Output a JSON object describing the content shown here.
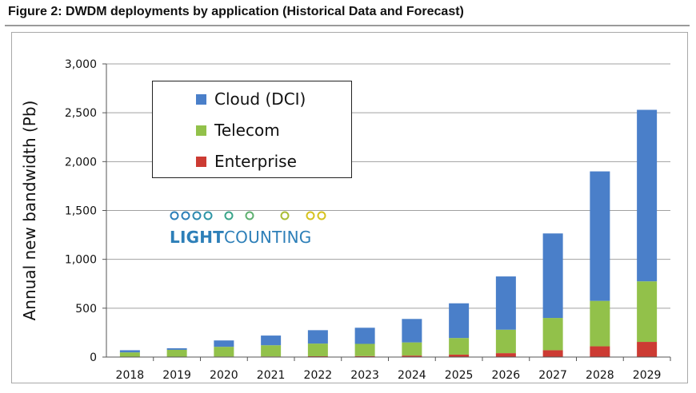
{
  "figure_title": "Figure 2: DWDM deployments by application (Historical Data and Forecast)",
  "logo": {
    "part1": "LIGHT",
    "part2": "COUNTING"
  },
  "colors": {
    "cloud": "#4a7fc9",
    "telecom": "#92c14a",
    "enterprise": "#cc3b33",
    "grid": "#a0a0a0"
  },
  "chart_data": {
    "type": "bar",
    "stacked": true,
    "title": "",
    "xlabel": "",
    "ylabel": "Annual new bandwidth (Pb)",
    "ylim": [
      0,
      3000
    ],
    "yticks": [
      0,
      500,
      1000,
      1500,
      2000,
      2500,
      3000
    ],
    "ytick_labels": [
      "0",
      "500",
      "1,000",
      "1,500",
      "2,000",
      "2,500",
      "3,000"
    ],
    "grid": true,
    "legend_position": "top-left",
    "categories": [
      "2018",
      "2019",
      "2020",
      "2021",
      "2022",
      "2023",
      "2024",
      "2025",
      "2026",
      "2027",
      "2028",
      "2029"
    ],
    "series": [
      {
        "name": "Enterprise",
        "color": "#cc3b33",
        "values": [
          3,
          4,
          5,
          6,
          8,
          10,
          15,
          25,
          40,
          70,
          110,
          155
        ]
      },
      {
        "name": "Telecom",
        "color": "#92c14a",
        "values": [
          45,
          70,
          100,
          115,
          130,
          125,
          135,
          170,
          240,
          330,
          465,
          620
        ]
      },
      {
        "name": "Cloud (DCI)",
        "color": "#4a7fc9",
        "values": [
          22,
          16,
          65,
          99,
          137,
          165,
          240,
          355,
          545,
          865,
          1325,
          1755
        ]
      }
    ]
  }
}
